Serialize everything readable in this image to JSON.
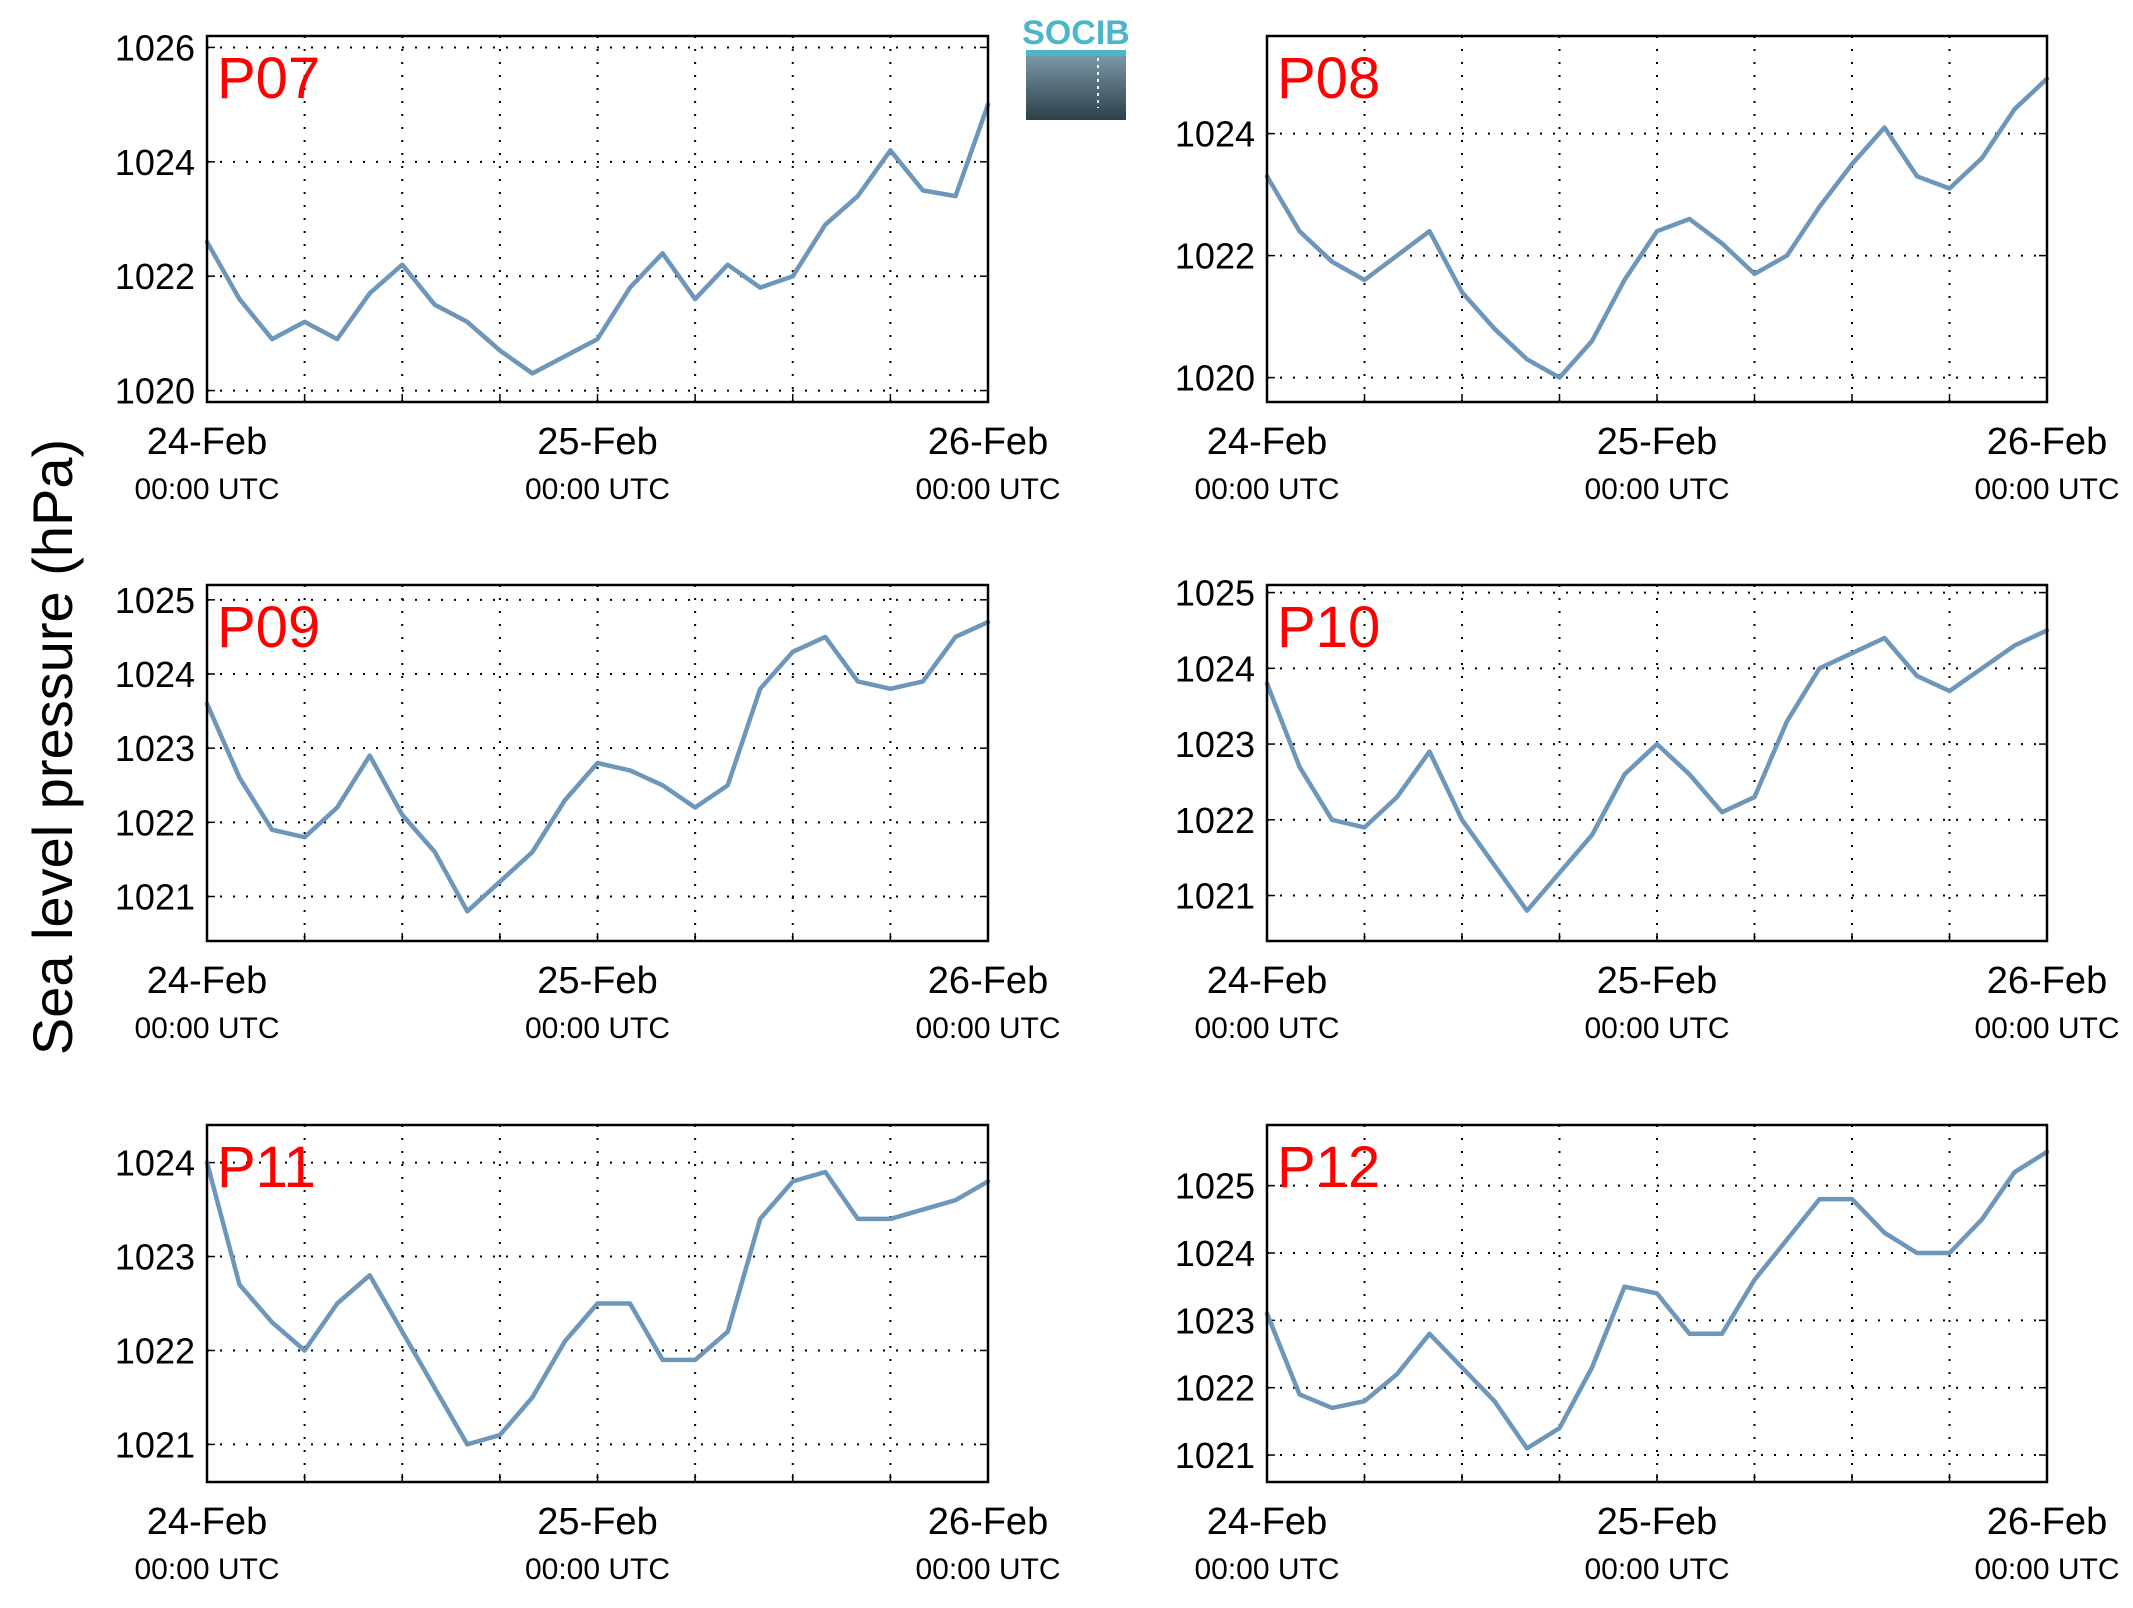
{
  "figure": {
    "ylabel": "Sea level pressure (hPa)",
    "logo": "SOCIB",
    "colors": {
      "line": "#6d96bb",
      "station_label": "#ff0000",
      "axes": "#000000",
      "grid": "#000000"
    }
  },
  "chart_data": [
    {
      "type": "line",
      "station": "P07",
      "x_ticks": [
        {
          "date": "24-Feb",
          "time": "00:00 UTC"
        },
        {
          "date": "25-Feb",
          "time": "00:00 UTC"
        },
        {
          "date": "26-Feb",
          "time": "00:00 UTC"
        }
      ],
      "xlim": [
        "2014-02-24T00:00",
        "2014-02-26T00:00"
      ],
      "yticks": [
        1020,
        1022,
        1024,
        1026
      ],
      "ylim": [
        1019.8,
        1026.2
      ],
      "grid": true,
      "series": [
        {
          "x_hours": [
            0,
            2,
            4,
            6,
            8,
            10,
            12,
            14,
            16,
            18,
            20,
            22,
            24,
            26,
            28,
            30,
            32,
            34,
            36,
            38,
            40,
            42,
            44,
            46,
            48
          ],
          "values": [
            1022.6,
            1021.6,
            1020.9,
            1021.2,
            1020.9,
            1021.7,
            1022.2,
            1021.5,
            1021.2,
            1020.7,
            1020.3,
            1020.6,
            1020.9,
            1021.8,
            1022.4,
            1021.6,
            1022.2,
            1021.8,
            1022.0,
            1022.9,
            1023.4,
            1024.2,
            1023.5,
            1023.4,
            1025.0
          ]
        }
      ]
    },
    {
      "type": "line",
      "station": "P08",
      "x_ticks": [
        {
          "date": "24-Feb",
          "time": "00:00 UTC"
        },
        {
          "date": "25-Feb",
          "time": "00:00 UTC"
        },
        {
          "date": "26-Feb",
          "time": "00:00 UTC"
        }
      ],
      "xlim": [
        "2014-02-24T00:00",
        "2014-02-26T00:00"
      ],
      "yticks": [
        1020,
        1022,
        1024
      ],
      "ylim": [
        1019.6,
        1025.6
      ],
      "grid": true,
      "series": [
        {
          "x_hours": [
            0,
            2,
            4,
            6,
            8,
            10,
            12,
            14,
            16,
            18,
            20,
            22,
            24,
            26,
            28,
            30,
            32,
            34,
            36,
            38,
            40,
            42,
            44,
            46,
            48
          ],
          "values": [
            1023.3,
            1022.4,
            1021.9,
            1021.6,
            1022.0,
            1022.4,
            1021.4,
            1020.8,
            1020.3,
            1020.0,
            1020.6,
            1021.6,
            1022.4,
            1022.6,
            1022.2,
            1021.7,
            1022.0,
            1022.8,
            1023.5,
            1024.1,
            1023.3,
            1023.1,
            1023.6,
            1024.4,
            1024.9
          ]
        }
      ]
    },
    {
      "type": "line",
      "station": "P09",
      "x_ticks": [
        {
          "date": "24-Feb",
          "time": "00:00 UTC"
        },
        {
          "date": "25-Feb",
          "time": "00:00 UTC"
        },
        {
          "date": "26-Feb",
          "time": "00:00 UTC"
        }
      ],
      "xlim": [
        "2014-02-24T00:00",
        "2014-02-26T00:00"
      ],
      "yticks": [
        1021,
        1022,
        1023,
        1024,
        1025
      ],
      "ylim": [
        1020.4,
        1025.2
      ],
      "grid": true,
      "series": [
        {
          "x_hours": [
            0,
            2,
            4,
            6,
            8,
            10,
            12,
            14,
            16,
            18,
            20,
            22,
            24,
            26,
            28,
            30,
            32,
            34,
            36,
            38,
            40,
            42,
            44,
            46,
            48
          ],
          "values": [
            1023.6,
            1022.6,
            1021.9,
            1021.8,
            1022.2,
            1022.9,
            1022.1,
            1021.6,
            1020.8,
            1021.2,
            1021.6,
            1022.3,
            1022.8,
            1022.7,
            1022.5,
            1022.2,
            1022.5,
            1023.8,
            1024.3,
            1024.5,
            1023.9,
            1023.8,
            1023.9,
            1024.5,
            1024.7
          ]
        }
      ]
    },
    {
      "type": "line",
      "station": "P10",
      "x_ticks": [
        {
          "date": "24-Feb",
          "time": "00:00 UTC"
        },
        {
          "date": "25-Feb",
          "time": "00:00 UTC"
        },
        {
          "date": "26-Feb",
          "time": "00:00 UTC"
        }
      ],
      "xlim": [
        "2014-02-24T00:00",
        "2014-02-26T00:00"
      ],
      "yticks": [
        1021,
        1022,
        1023,
        1024,
        1025
      ],
      "ylim": [
        1020.4,
        1025.1
      ],
      "grid": true,
      "series": [
        {
          "x_hours": [
            0,
            2,
            4,
            6,
            8,
            10,
            12,
            14,
            16,
            18,
            20,
            22,
            24,
            26,
            28,
            30,
            32,
            34,
            36,
            38,
            40,
            42,
            44,
            46,
            48
          ],
          "values": [
            1023.8,
            1022.7,
            1022.0,
            1021.9,
            1022.3,
            1022.9,
            1022.0,
            1021.4,
            1020.8,
            1021.3,
            1021.8,
            1022.6,
            1023.0,
            1022.6,
            1022.1,
            1022.3,
            1023.3,
            1024.0,
            1024.2,
            1024.4,
            1023.9,
            1023.7,
            1024.0,
            1024.3,
            1024.5
          ]
        }
      ]
    },
    {
      "type": "line",
      "station": "P11",
      "x_ticks": [
        {
          "date": "24-Feb",
          "time": "00:00 UTC"
        },
        {
          "date": "25-Feb",
          "time": "00:00 UTC"
        },
        {
          "date": "26-Feb",
          "time": "00:00 UTC"
        }
      ],
      "xlim": [
        "2014-02-24T00:00",
        "2014-02-26T00:00"
      ],
      "yticks": [
        1021,
        1022,
        1023,
        1024
      ],
      "ylim": [
        1020.6,
        1024.4
      ],
      "grid": true,
      "series": [
        {
          "x_hours": [
            0,
            2,
            4,
            6,
            8,
            10,
            12,
            14,
            16,
            18,
            20,
            22,
            24,
            26,
            28,
            30,
            32,
            34,
            36,
            38,
            40,
            42,
            44,
            46,
            48
          ],
          "values": [
            1024.0,
            1022.7,
            1022.3,
            1022.0,
            1022.5,
            1022.8,
            1022.2,
            1021.6,
            1021.0,
            1021.1,
            1021.5,
            1022.1,
            1022.5,
            1022.5,
            1021.9,
            1021.9,
            1022.2,
            1023.4,
            1023.8,
            1023.9,
            1023.4,
            1023.4,
            1023.5,
            1023.6,
            1023.8
          ]
        }
      ]
    },
    {
      "type": "line",
      "station": "P12",
      "x_ticks": [
        {
          "date": "24-Feb",
          "time": "00:00 UTC"
        },
        {
          "date": "25-Feb",
          "time": "00:00 UTC"
        },
        {
          "date": "26-Feb",
          "time": "00:00 UTC"
        }
      ],
      "xlim": [
        "2014-02-24T00:00",
        "2014-02-26T00:00"
      ],
      "yticks": [
        1021,
        1022,
        1023,
        1024,
        1025
      ],
      "ylim": [
        1020.6,
        1025.9
      ],
      "grid": true,
      "series": [
        {
          "x_hours": [
            0,
            2,
            4,
            6,
            8,
            10,
            12,
            14,
            16,
            18,
            20,
            22,
            24,
            26,
            28,
            30,
            32,
            34,
            36,
            38,
            40,
            42,
            44,
            46,
            48
          ],
          "values": [
            1023.1,
            1021.9,
            1021.7,
            1021.8,
            1022.2,
            1022.8,
            1022.3,
            1021.8,
            1021.1,
            1021.4,
            1022.3,
            1023.5,
            1023.4,
            1022.8,
            1022.8,
            1023.6,
            1024.2,
            1024.8,
            1024.8,
            1024.3,
            1024.0,
            1024.0,
            1024.5,
            1025.2,
            1025.5
          ]
        }
      ]
    }
  ]
}
